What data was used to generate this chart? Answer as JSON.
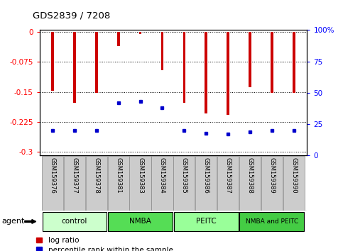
{
  "title": "GDS2839 / 7208",
  "samples": [
    "GSM159376",
    "GSM159377",
    "GSM159378",
    "GSM159381",
    "GSM159383",
    "GSM159384",
    "GSM159385",
    "GSM159386",
    "GSM159387",
    "GSM159388",
    "GSM159389",
    "GSM159390"
  ],
  "log_ratios": [
    -0.148,
    -0.178,
    -0.152,
    -0.035,
    -0.005,
    -0.095,
    -0.178,
    -0.205,
    -0.207,
    -0.138,
    -0.153,
    -0.152
  ],
  "percentile_ranks": [
    20,
    20,
    20,
    42,
    43,
    38,
    20,
    18,
    17,
    19,
    20,
    20
  ],
  "bar_color": "#cc0000",
  "marker_color": "#0000cc",
  "groups": [
    {
      "label": "control",
      "start": 0,
      "end": 3,
      "color": "#ccffcc"
    },
    {
      "label": "NMBA",
      "start": 3,
      "end": 6,
      "color": "#55dd55"
    },
    {
      "label": "PEITC",
      "start": 6,
      "end": 9,
      "color": "#99ff99"
    },
    {
      "label": "NMBA and PEITC",
      "start": 9,
      "end": 12,
      "color": "#44cc44"
    }
  ],
  "ylim": [
    -0.31,
    0.005
  ],
  "yticks": [
    0,
    -0.075,
    -0.15,
    -0.225,
    -0.3
  ],
  "right_yticks": [
    0,
    25,
    50,
    75,
    100
  ],
  "right_ytick_labels": [
    "0",
    "25",
    "50",
    "75",
    "100%"
  ],
  "legend_log_ratio": "log ratio",
  "legend_percentile": "percentile rank within the sample",
  "bar_width": 0.12
}
